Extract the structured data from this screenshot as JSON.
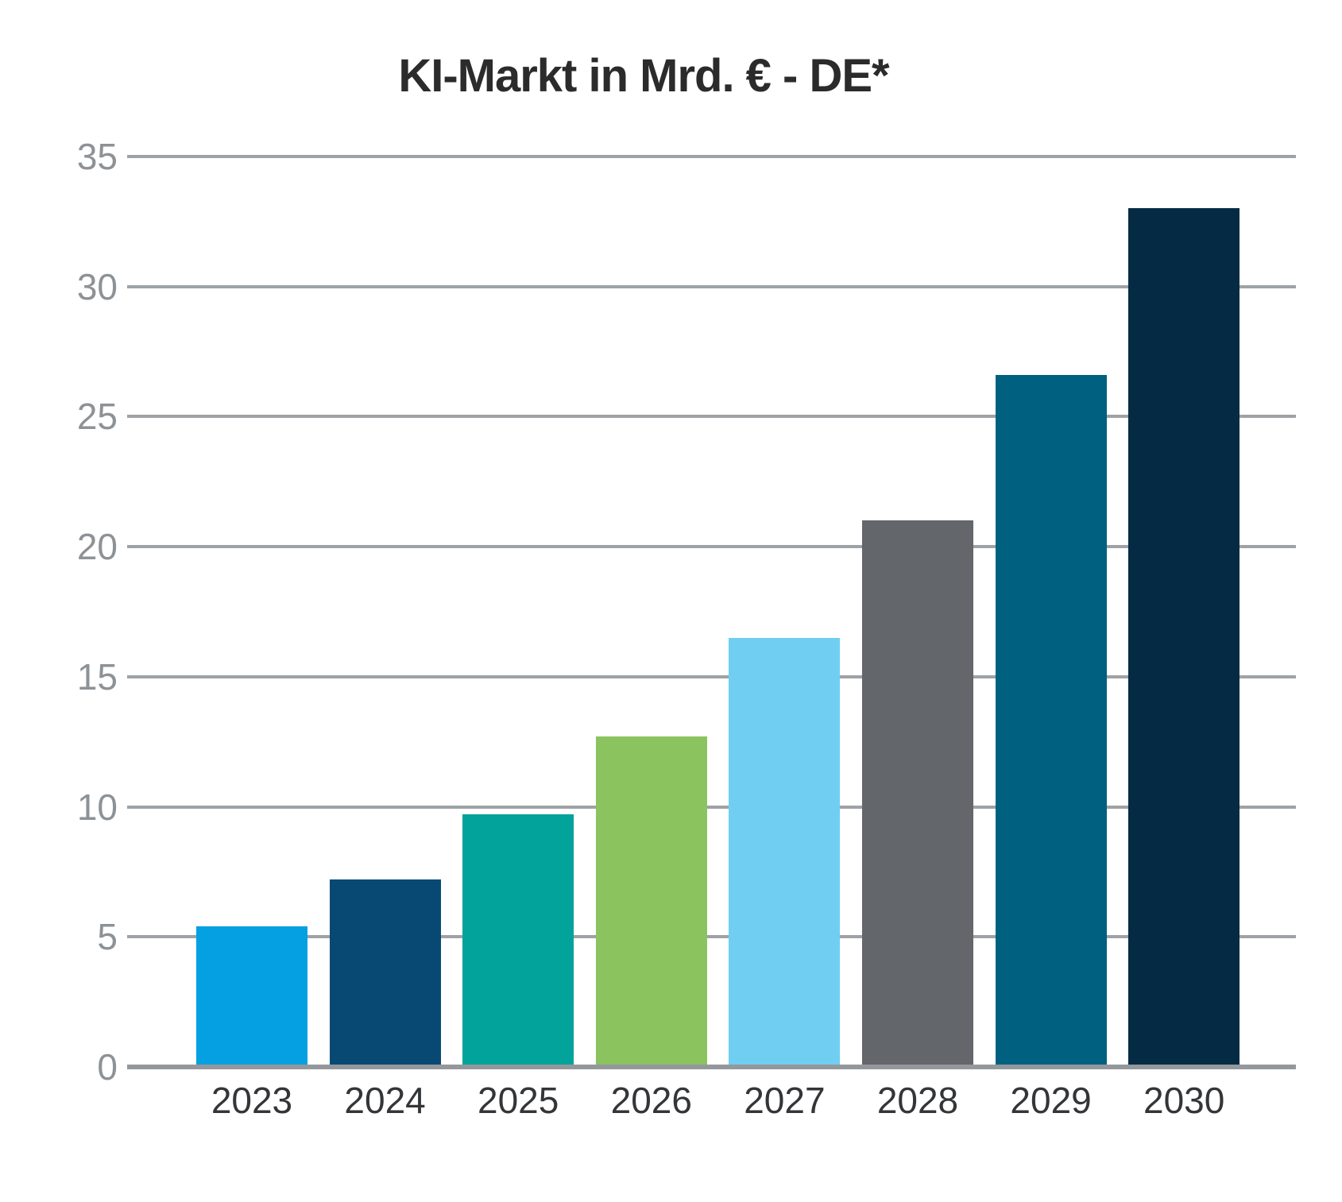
{
  "chart_data": {
    "type": "bar",
    "title": "KI-Markt in Mrd. € - DE*",
    "categories": [
      "2023",
      "2024",
      "2025",
      "2026",
      "2027",
      "2028",
      "2029",
      "2030"
    ],
    "values": [
      5.4,
      7.2,
      9.7,
      12.7,
      16.5,
      21.0,
      26.6,
      33.0
    ],
    "bar_colors": [
      "#05a0e1",
      "#074973",
      "#02a39a",
      "#8bc45f",
      "#70cef2",
      "#63666a",
      "#00607f",
      "#052a44"
    ],
    "xlabel": "",
    "ylabel": "",
    "ylim": [
      0,
      35
    ],
    "yticks": [
      0,
      5,
      10,
      15,
      20,
      25,
      30,
      35
    ],
    "grid": "horizontal",
    "legend": "none"
  },
  "colors": {
    "background": "#ffffff",
    "gridline": "#9ea2a6",
    "baseline": "#94989c",
    "y_tick_text": "#8d9296",
    "x_tick_text": "#333538",
    "title_text": "#2b2b2b"
  }
}
